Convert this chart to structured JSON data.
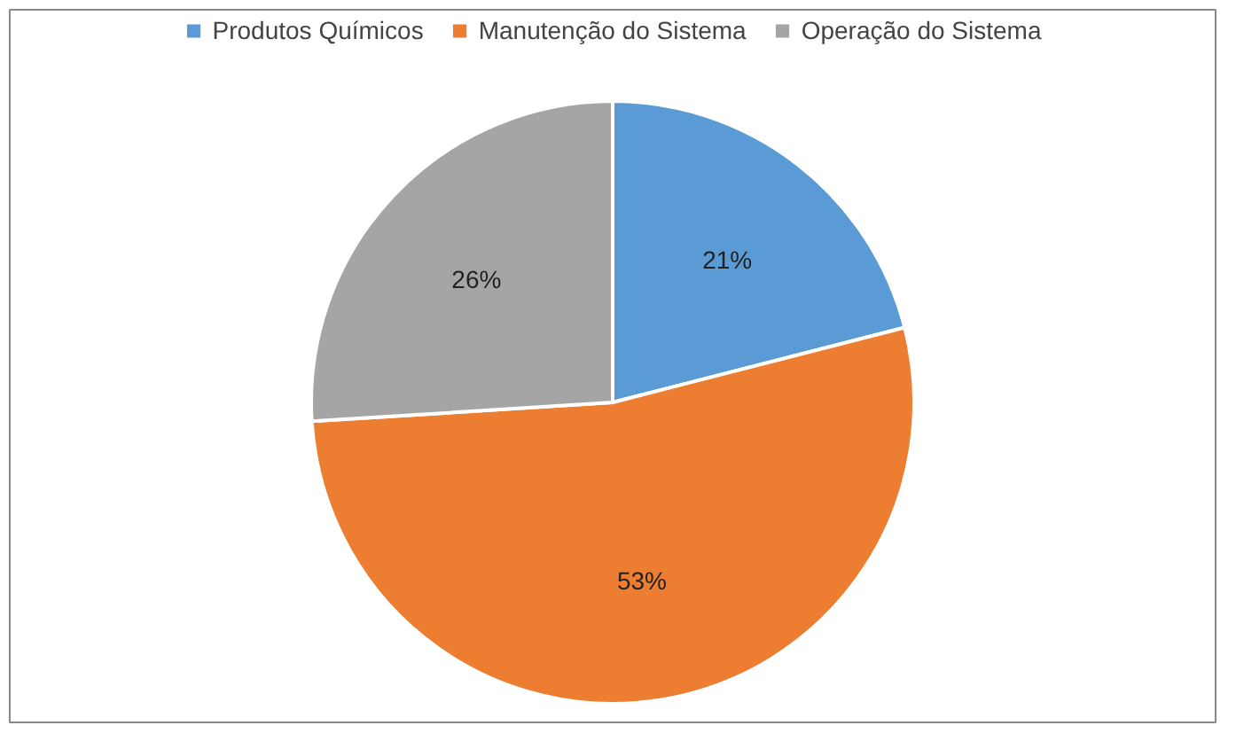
{
  "chart_data": {
    "type": "pie",
    "categories": [
      "Produtos Químicos",
      "Manutenção do Sistema",
      "Operação do Sistema"
    ],
    "values": [
      21,
      53,
      26
    ],
    "colors": [
      "#5b9bd5",
      "#ed7d31",
      "#a5a5a5"
    ],
    "value_labels": [
      "21%",
      "53%",
      "26%"
    ],
    "legend": "top"
  }
}
